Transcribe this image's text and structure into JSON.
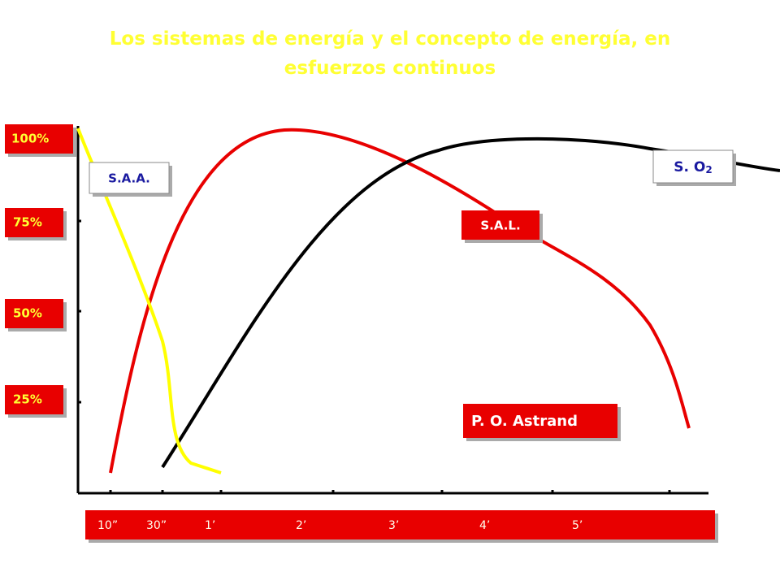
{
  "header": {
    "title": "Los sistemas de energía y el concepto de energía, en esfuerzos continuos"
  },
  "y_labels": [
    "100%",
    "75%",
    "50%",
    "25%"
  ],
  "x_labels": [
    "10”",
    "30”",
    "1’",
    "2’",
    "3’",
    "4’",
    "5’"
  ],
  "curve_labels": {
    "saa": "S.A.A.",
    "sal": "S.A.L.",
    "so2": {
      "text": "S. O",
      "subscript": "2"
    }
  },
  "credit": "P. O. Astrand"
}
